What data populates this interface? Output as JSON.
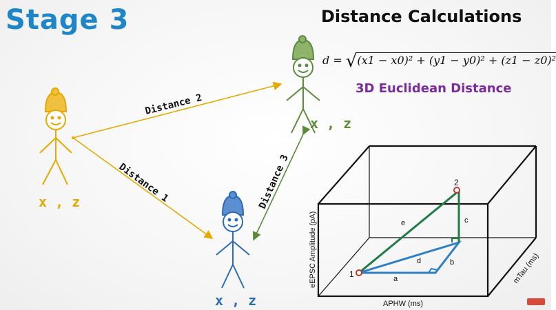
{
  "title": "Stage 3",
  "heading": "Distance Calculations",
  "formula": {
    "lhs": "d =",
    "body": "(x1 − x0)² + (y1 − y0)² + (z1 − z0)²"
  },
  "subheading": "3D Euclidean Distance",
  "figures": {
    "left_label": "x , z",
    "top_label": "x , z",
    "bottom_label": "x , z"
  },
  "distances": {
    "d1": "Distance 1",
    "d2": "Distance 2",
    "d3": "Distance 3"
  },
  "box": {
    "x_axis": "APHW (ms)",
    "y_axis": "eEPSC Amplitude (pA)",
    "z_axis": "mTau (ms)",
    "point1": "1",
    "point2": "2",
    "edges": {
      "a": "a",
      "b": "b",
      "c": "c",
      "d": "d",
      "e": "e"
    }
  },
  "colors": {
    "title": "#1e86c8",
    "subheading": "#7a2b9c",
    "yellow": "#e6a900",
    "green": "#5b8b3a",
    "blue": "#2c6bb5",
    "triangle": "#2f7fc4",
    "hypotenuse": "#1f7a45",
    "point": "#c0392b"
  }
}
